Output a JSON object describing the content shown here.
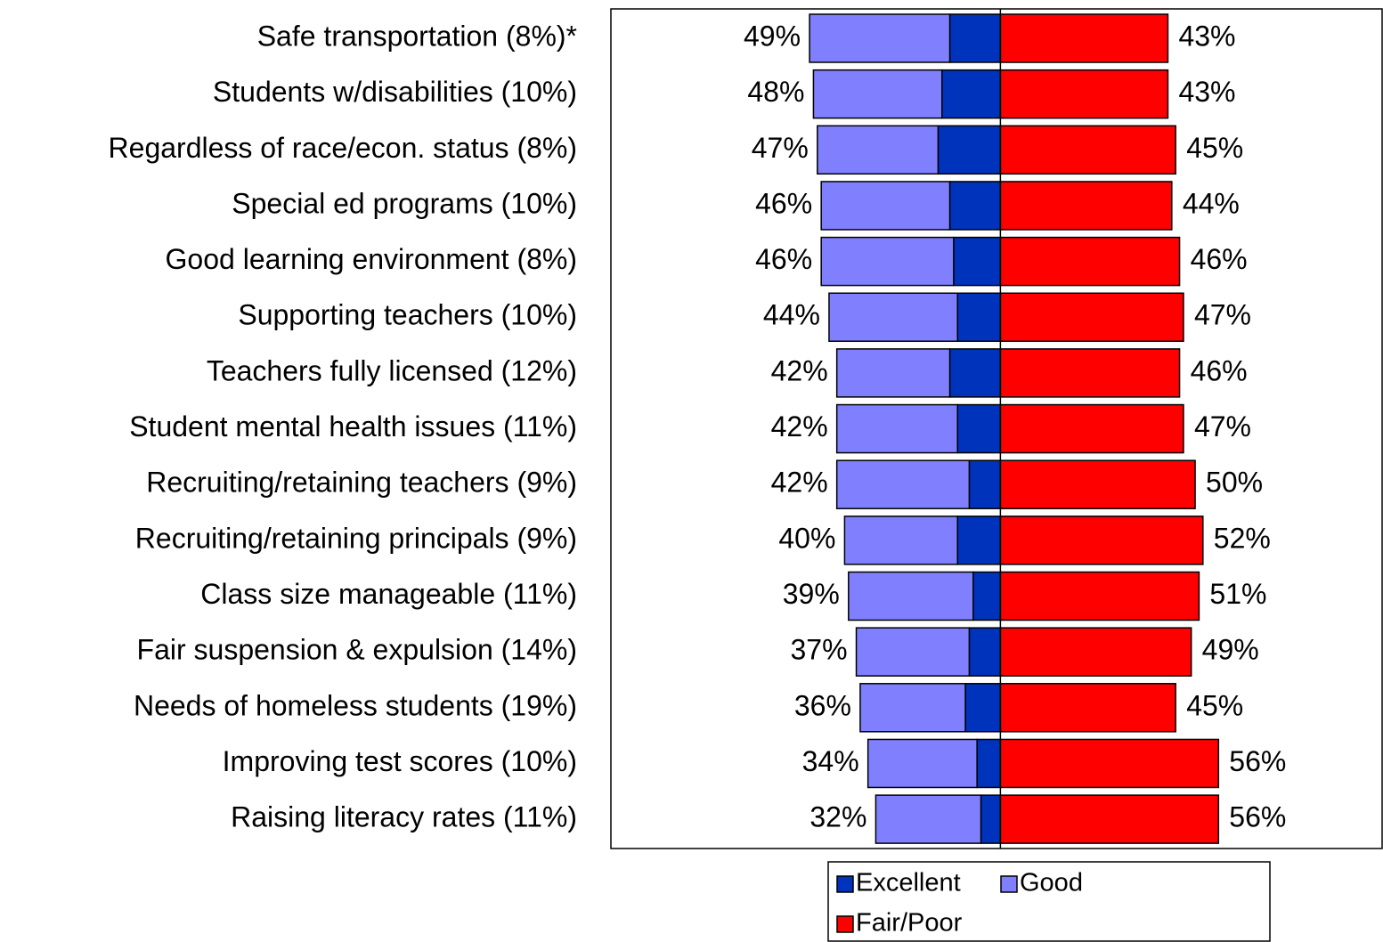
{
  "chart_data": {
    "type": "diverging-bar",
    "categories": [
      "Safe transportation (8%)*",
      "Students w/disabilities (10%)",
      "Regardless of race/econ. status (8%)",
      "Special ed programs (10%)",
      "Good learning environment (8%)",
      "Supporting teachers (10%)",
      "Teachers fully licensed (12%)",
      "Student mental health issues (11%)",
      "Recruiting/retaining teachers (9%)",
      "Recruiting/retaining principals (9%)",
      "Class size manageable (11%)",
      "Fair suspension & expulsion (14%)",
      "Needs of homeless students (19%)",
      "Improving test scores (10%)",
      "Raising literacy rates (11%)"
    ],
    "series": [
      {
        "name": "Excellent",
        "color": "#0033bb",
        "side": "left",
        "values": [
          13,
          15,
          16,
          13,
          12,
          11,
          13,
          11,
          8,
          11,
          7,
          8,
          9,
          6,
          5
        ]
      },
      {
        "name": "Good",
        "color": "#8080ff",
        "side": "left",
        "values": [
          36,
          33,
          31,
          33,
          34,
          33,
          29,
          31,
          34,
          29,
          32,
          29,
          27,
          28,
          27
        ]
      },
      {
        "name": "Fair/Poor",
        "color": "#ff0000",
        "side": "right",
        "values": [
          43,
          43,
          45,
          44,
          46,
          47,
          46,
          47,
          50,
          52,
          51,
          49,
          45,
          56,
          56
        ],
        "value_labels": [
          "43%",
          "43%",
          "45%",
          "44%",
          "46%",
          "47%",
          "46%",
          "47%",
          "50%",
          "52%",
          "51%",
          "49%",
          "45%",
          "56%",
          "56%"
        ]
      }
    ],
    "totals": {
      "values": [
        49,
        48,
        47,
        46,
        46,
        44,
        42,
        42,
        42,
        40,
        39,
        37,
        36,
        34,
        32
      ],
      "value_labels": [
        "49%",
        "48%",
        "47%",
        "46%",
        "46%",
        "44%",
        "42%",
        "42%",
        "42%",
        "40%",
        "39%",
        "37%",
        "36%",
        "34%",
        "32%"
      ]
    },
    "xlim": [
      -100,
      98
    ]
  }
}
